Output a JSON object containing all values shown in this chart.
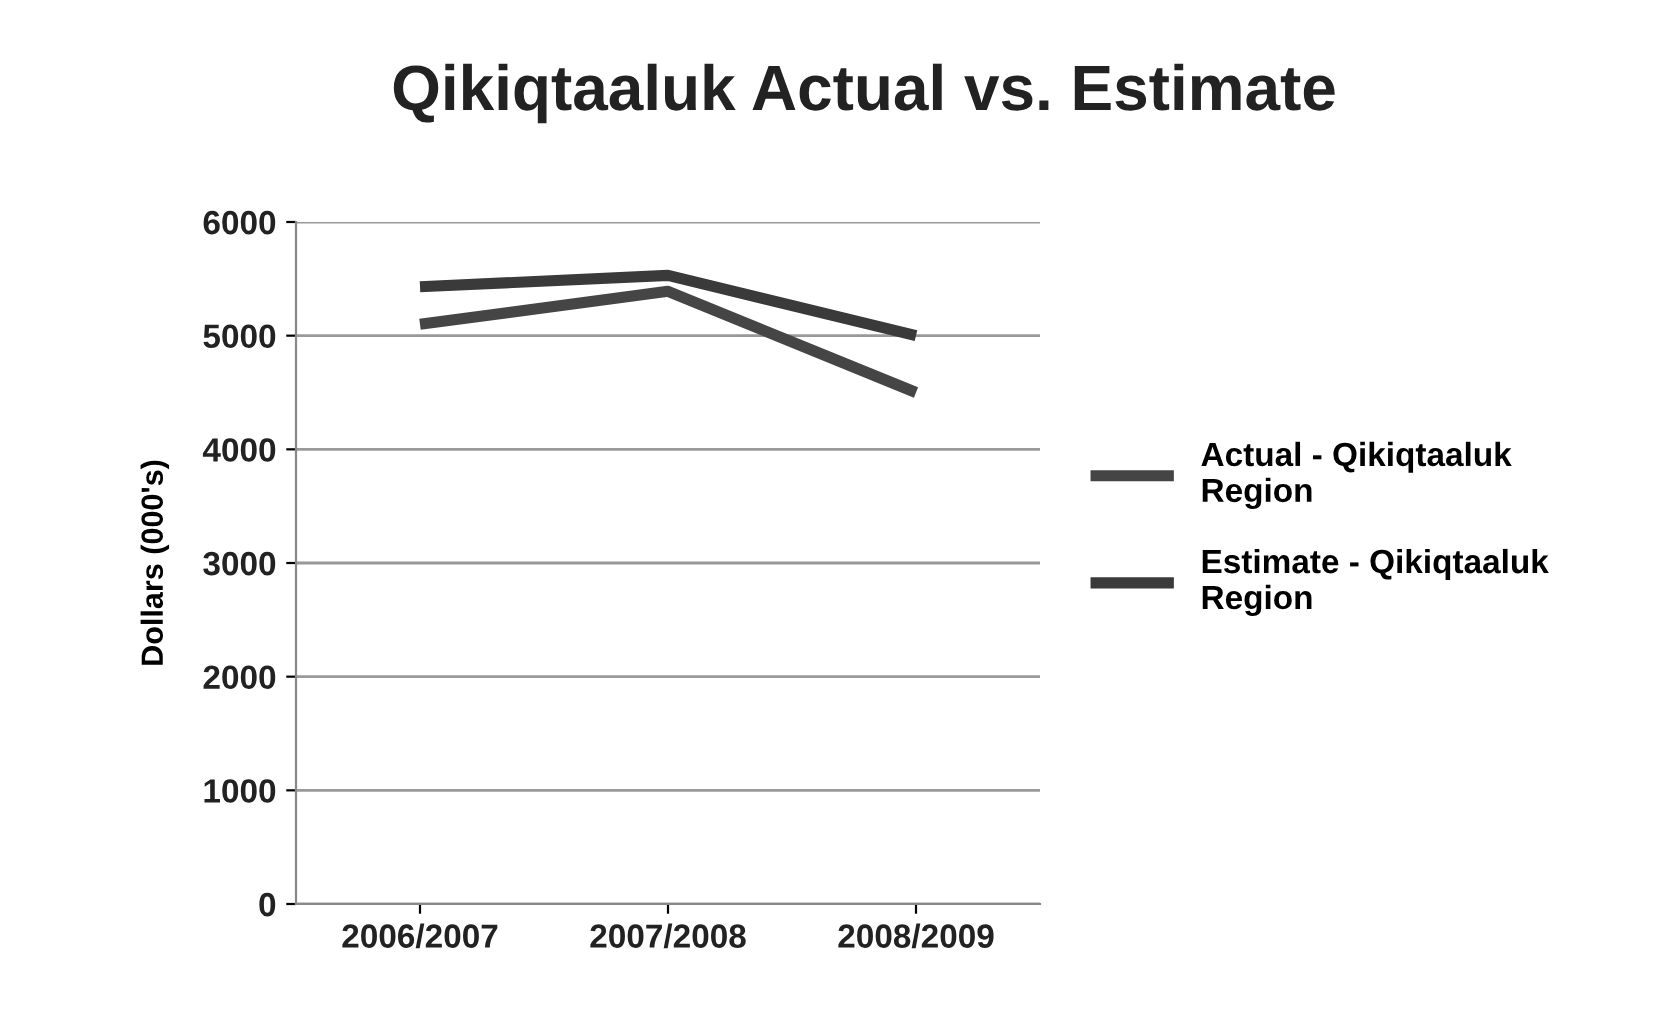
{
  "chart_data": {
    "type": "line",
    "title": "Qikiqtaaluk Actual vs. Estimate",
    "ylabel": "Dollars (000's)",
    "categories": [
      "2006/2007",
      "2007/2008",
      "2008/2009"
    ],
    "series": [
      {
        "name": "Actual - Qikiqtaaluk\nRegion",
        "color": "#454545",
        "values": [
          5100,
          5390,
          4500
        ]
      },
      {
        "name": "Estimate - Qikiqtaaluk\nRegion",
        "color": "#3a3a3a",
        "values": [
          5430,
          5530,
          5000
        ]
      }
    ],
    "ylim": [
      0,
      6000
    ],
    "yticks": [
      0,
      1000,
      2000,
      3000,
      4000,
      5000,
      6000
    ],
    "grid": "y",
    "legend": "right",
    "marker": "none",
    "line_style": "solid"
  }
}
